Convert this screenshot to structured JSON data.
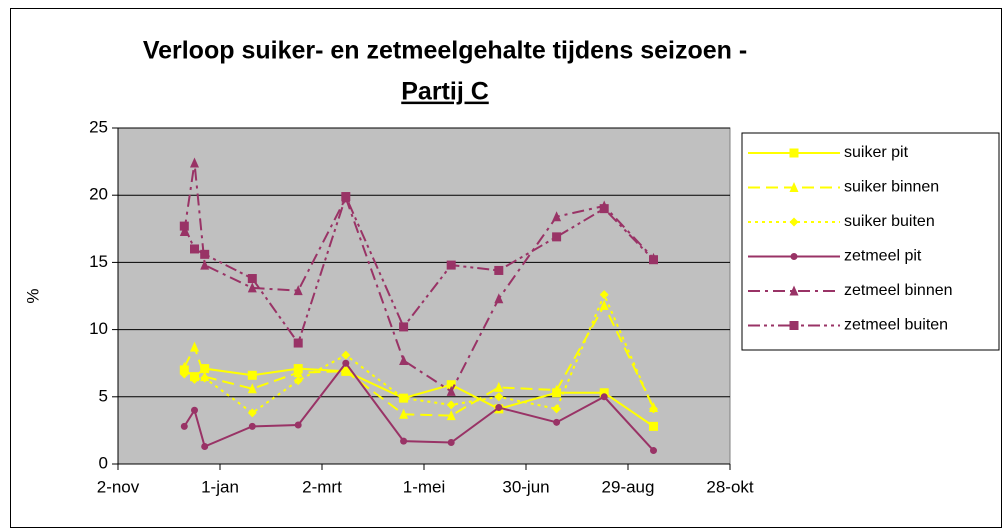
{
  "chart_data": {
    "type": "line",
    "title": "Verloop suiker- en zetmeelgehalte tijdens seizoen -",
    "subtitle": "Partij C",
    "y_label": "%",
    "x": [
      39,
      45,
      51,
      79,
      106,
      134,
      168,
      196,
      224,
      258,
      286,
      315
    ],
    "xlim": [
      0,
      360
    ],
    "xticks": [
      {
        "value": 0,
        "label": "2-nov"
      },
      {
        "value": 60,
        "label": "1-jan"
      },
      {
        "value": 120,
        "label": "2-mrt"
      },
      {
        "value": 180,
        "label": "1-mei"
      },
      {
        "value": 240,
        "label": "30-jun"
      },
      {
        "value": 300,
        "label": "29-aug"
      },
      {
        "value": 360,
        "label": "28-okt"
      }
    ],
    "ylim": [
      0,
      25
    ],
    "yticks": [
      0,
      5,
      10,
      15,
      20,
      25
    ],
    "grid": true,
    "legend": "right",
    "series": [
      {
        "name": "suiker pit",
        "color": "#ffff00",
        "marker": "square",
        "dash": "solid",
        "values": [
          7.0,
          6.5,
          7.1,
          6.6,
          7.1,
          6.9,
          4.9,
          5.9,
          4.1,
          5.3,
          5.3,
          2.8
        ]
      },
      {
        "name": "suiker binnen",
        "color": "#ffff00",
        "marker": "triangle",
        "dash": "dashed",
        "values": [
          7.2,
          8.7,
          6.5,
          5.6,
          6.8,
          6.9,
          3.7,
          3.6,
          5.7,
          5.5,
          11.8,
          4.2
        ]
      },
      {
        "name": "suiker buiten",
        "color": "#ffff00",
        "marker": "diamond",
        "dash": "dotted",
        "values": [
          6.7,
          6.3,
          6.4,
          3.8,
          6.2,
          8.1,
          4.9,
          4.4,
          5.0,
          4.1,
          12.6,
          4.1
        ]
      },
      {
        "name": "zetmeel pit",
        "color": "#993366",
        "marker": "circle",
        "dash": "solid",
        "values": [
          2.8,
          4.0,
          1.3,
          2.8,
          2.9,
          7.5,
          1.7,
          1.6,
          4.2,
          3.1,
          5.0,
          1.0
        ]
      },
      {
        "name": "zetmeel binnen",
        "color": "#993366",
        "marker": "triangle",
        "dash": "dashdot",
        "values": [
          17.3,
          22.4,
          14.8,
          13.1,
          12.9,
          19.8,
          7.7,
          5.4,
          12.3,
          18.4,
          19.2,
          15.3
        ]
      },
      {
        "name": "zetmeel buiten",
        "color": "#993366",
        "marker": "square",
        "dash": "dashdotdot",
        "values": [
          17.7,
          16.0,
          15.6,
          13.8,
          9.0,
          19.9,
          10.2,
          14.8,
          14.4,
          16.9,
          19.0,
          15.2
        ]
      }
    ]
  }
}
